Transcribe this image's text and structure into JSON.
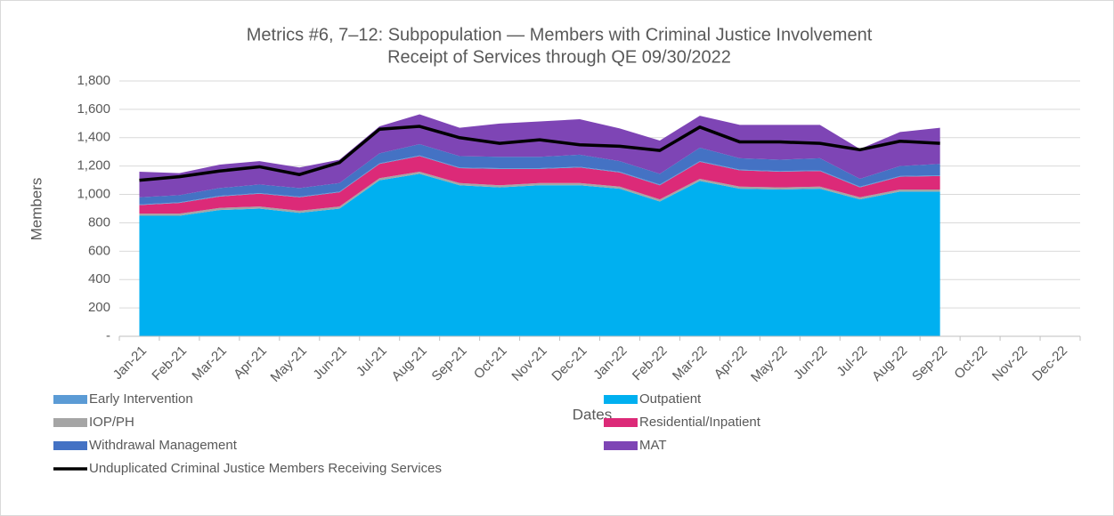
{
  "chart_data": {
    "type": "stacked-area",
    "title": "Metrics #6, 7–12: Subpopulation — Members with Criminal Justice Involvement",
    "subtitle": "Receipt of Services through QE 09/30/2022",
    "x_label": "Dates",
    "y_label": "Members",
    "categories": [
      "Jan-21",
      "Feb-21",
      "Mar-21",
      "Apr-21",
      "May-21",
      "Jun-21",
      "Jul-21",
      "Aug-21",
      "Sep-21",
      "Oct-21",
      "Nov-21",
      "Dec-21",
      "Jan-22",
      "Feb-22",
      "Mar-22",
      "Apr-22",
      "May-22",
      "Jun-22",
      "Jul-22",
      "Aug-22",
      "Sep-22",
      "Oct-22",
      "Nov-22",
      "Dec-22"
    ],
    "ylim": [
      0,
      1800
    ],
    "yticks": [
      {
        "value": 0,
        "label": "-"
      },
      200,
      400,
      600,
      800,
      {
        "value": 1000,
        "label": "1,000"
      },
      {
        "value": 1200,
        "label": "1,200"
      },
      {
        "value": 1400,
        "label": "1,400"
      },
      {
        "value": 1600,
        "label": "1,600"
      },
      {
        "value": 1800,
        "label": "1,800"
      }
    ],
    "grid": true,
    "series": [
      {
        "name": "Outpatient",
        "color": "#00b0f0",
        "values": [
          850,
          850,
          890,
          900,
          870,
          900,
          1100,
          1145,
          1065,
          1050,
          1065,
          1065,
          1040,
          950,
          1095,
          1040,
          1035,
          1040,
          965,
          1020,
          1020,
          null,
          null,
          null
        ]
      },
      {
        "name": "IOP/PH",
        "color": "#a5a5a5",
        "values": [
          15,
          15,
          15,
          15,
          15,
          15,
          15,
          15,
          15,
          15,
          15,
          15,
          15,
          15,
          15,
          15,
          15,
          15,
          15,
          15,
          15,
          null,
          null,
          null
        ]
      },
      {
        "name": "Residential/Inpatient",
        "color": "#dc2a78",
        "values": [
          60,
          75,
          80,
          90,
          95,
          100,
          100,
          110,
          105,
          115,
          100,
          110,
          100,
          100,
          120,
          115,
          110,
          110,
          70,
          90,
          95,
          null,
          null,
          null
        ]
      },
      {
        "name": "Early Intervention",
        "color": "#5b9bd5",
        "values": [
          5,
          5,
          5,
          5,
          5,
          5,
          5,
          5,
          5,
          5,
          5,
          5,
          5,
          5,
          5,
          5,
          5,
          5,
          5,
          5,
          5,
          null,
          null,
          null
        ]
      },
      {
        "name": "Withdrawal Management",
        "color": "#4472c4",
        "values": [
          50,
          50,
          55,
          60,
          60,
          60,
          70,
          80,
          80,
          80,
          80,
          85,
          75,
          75,
          95,
          80,
          80,
          85,
          55,
          70,
          80,
          null,
          null,
          null
        ]
      },
      {
        "name": "MAT",
        "color": "#7e45b5",
        "values": [
          180,
          155,
          165,
          165,
          145,
          165,
          190,
          210,
          200,
          235,
          250,
          250,
          230,
          235,
          225,
          235,
          245,
          235,
          210,
          240,
          255,
          null,
          null,
          null
        ]
      },
      {
        "name": "Unduplicated Criminal Justice Members Receiving Services",
        "color": "#000000",
        "type": "line",
        "values": [
          1100,
          1125,
          1165,
          1195,
          1140,
          1225,
          1460,
          1480,
          1400,
          1360,
          1385,
          1350,
          1340,
          1310,
          1475,
          1370,
          1370,
          1360,
          1315,
          1375,
          1360,
          null,
          null,
          null
        ]
      }
    ]
  }
}
